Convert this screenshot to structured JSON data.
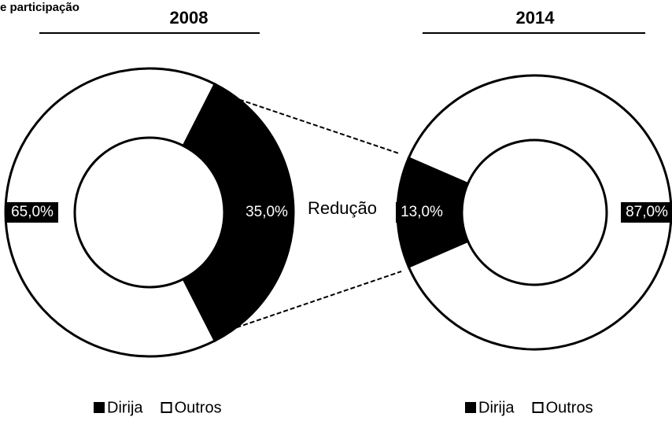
{
  "caption": "e participação",
  "annotation": "Redução",
  "chart_data": [
    {
      "type": "donut",
      "title": "2008",
      "categories": [
        "Dirija",
        "Outros"
      ],
      "values": [
        35,
        65
      ],
      "value_labels": [
        "35,0%",
        "65,0%"
      ],
      "colors": [
        "#000000",
        "#ffffff"
      ],
      "legend": "bottom"
    },
    {
      "type": "donut",
      "title": "2014",
      "categories": [
        "Dirija",
        "Outros"
      ],
      "values": [
        13,
        87
      ],
      "value_labels": [
        "13,0%",
        "87,0%"
      ],
      "colors": [
        "#000000",
        "#ffffff"
      ],
      "legend": "bottom"
    }
  ]
}
